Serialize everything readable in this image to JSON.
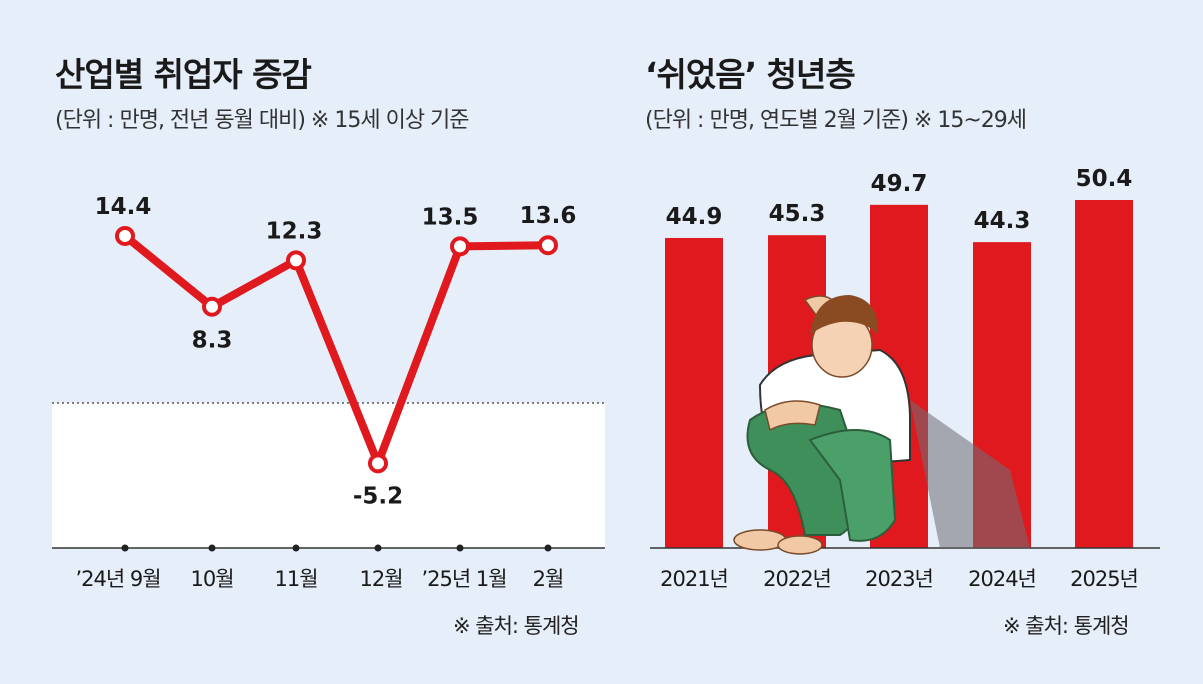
{
  "left": {
    "title": "산업별 취업자 증감",
    "subtitle": "(단위 : 만명, 전년 동월 대비) ※ 15세 이상 기준",
    "source": "※ 출처: 통계청"
  },
  "right": {
    "title": "‘쉬었음’ 청년층",
    "subtitle": "(단위 : 만명, 연도별 2월 기준) ※ 15~29세",
    "source": "※ 출처: 통계청"
  },
  "colors": {
    "accent": "#e0191f",
    "background": "#e6eef9",
    "negative_area": "#ffffff"
  },
  "chart_data": [
    {
      "type": "line",
      "categories": [
        "’24년 9월",
        "10월",
        "11월",
        "12월",
        "’25년 1월",
        "2월"
      ],
      "values": [
        14.4,
        8.3,
        12.3,
        -5.2,
        13.5,
        13.6
      ],
      "ylim": [
        -8,
        18
      ],
      "baseline": 0,
      "grid": false
    },
    {
      "type": "bar",
      "categories": [
        "2021년",
        "2022년",
        "2023년",
        "2024년",
        "2025년"
      ],
      "values": [
        44.9,
        45.3,
        49.7,
        44.3,
        50.4
      ],
      "ylim": [
        0,
        52
      ],
      "grid": false,
      "illustration": "sitting-young-man-figure"
    }
  ]
}
